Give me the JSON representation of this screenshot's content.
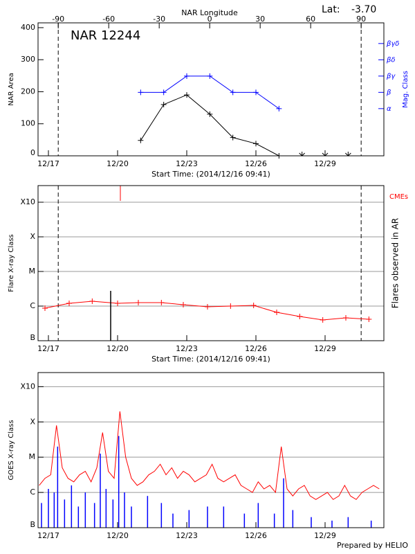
{
  "credit": "Prepared by HELIO",
  "chart_data": [
    {
      "type": "line",
      "title": "NAR 12244",
      "lat_label": "Lat:",
      "lat_value": "-3.70",
      "x_label": "Start Time: (2014/12/16 09:41)",
      "y_label": "NAR Area",
      "y2_label": "Mag. Class",
      "x2_label": "NAR Longitude",
      "xlim": [
        0.55,
        15.55
      ],
      "xticks": [
        {
          "value": 1,
          "label": "12/17"
        },
        {
          "value": 4,
          "label": "12/20"
        },
        {
          "value": 7,
          "label": "12/23"
        },
        {
          "value": 10,
          "label": "12/26"
        },
        {
          "value": 13,
          "label": "12/29"
        }
      ],
      "ylim": [
        0,
        415
      ],
      "yticks": [
        0,
        100,
        200,
        300,
        400
      ],
      "y2lim": [
        -0.9,
        7.27
      ],
      "y2ticks": [
        {
          "value": 2,
          "label": "α"
        },
        {
          "value": 3,
          "label": "β"
        },
        {
          "value": 4,
          "label": "βγ"
        },
        {
          "value": 5,
          "label": "βδ"
        },
        {
          "value": 6,
          "label": "βγδ"
        }
      ],
      "x2lim": [
        -102,
        103.5
      ],
      "x2ticks": [
        -90,
        -60,
        -30,
        0,
        30,
        60,
        90
      ],
      "limb_lines": [
        -90,
        90
      ],
      "series": [
        {
          "color": "#000000",
          "style": "line",
          "marker": "+",
          "x": [
            5,
            6,
            7,
            8,
            9,
            10,
            11
          ],
          "values": [
            48,
            160,
            190,
            130,
            57,
            38,
            0
          ]
        },
        {
          "color": "#0000ff",
          "style": "line",
          "marker": "+",
          "axis": "y2",
          "x": [
            5,
            6,
            7,
            8,
            9,
            10,
            11
          ],
          "values": [
            3,
            3,
            4,
            4,
            3,
            3,
            2
          ]
        },
        {
          "color": "#000000",
          "style": "arrow",
          "x": [
            12,
            13,
            14
          ],
          "values": [
            0,
            0,
            0
          ]
        }
      ]
    },
    {
      "type": "line",
      "x_label": "Start Time: (2014/12/16 09:41)",
      "y_label": "Flare X-ray Class",
      "y2_label": "Flares observed in AR",
      "xlim": [
        0.55,
        15.55
      ],
      "xticks": [
        {
          "value": 1,
          "label": "12/17"
        },
        {
          "value": 4,
          "label": "12/20"
        },
        {
          "value": 7,
          "label": "12/23"
        },
        {
          "value": 10,
          "label": "12/26"
        },
        {
          "value": 13,
          "label": "12/29"
        }
      ],
      "ylim": [
        -7,
        -2.52
      ],
      "yticks": [
        {
          "value": -7,
          "label": "B"
        },
        {
          "value": -6,
          "label": "C"
        },
        {
          "value": -5,
          "label": "M"
        },
        {
          "value": -4,
          "label": "X"
        },
        {
          "value": -3,
          "label": "X10"
        }
      ],
      "grid": true,
      "series": [
        {
          "color": "#ff0000",
          "style": "line",
          "marker": "+",
          "x": [
            0.85,
            1.9,
            2.9,
            4.0,
            4.9,
            5.9,
            6.85,
            7.9,
            8.9,
            9.9,
            10.9,
            11.9,
            12.9,
            13.9,
            14.9
          ],
          "values": [
            -6.06,
            -5.92,
            -5.86,
            -5.92,
            -5.9,
            -5.9,
            -5.96,
            -6.02,
            -6.0,
            -5.98,
            -6.18,
            -6.3,
            -6.4,
            -6.34,
            -6.38
          ]
        },
        {
          "color": "#000000",
          "style": "bar",
          "x": [
            3.7
          ],
          "values": [
            -5.56
          ]
        }
      ],
      "cmes": {
        "label": "CMEs",
        "color": "#ff0000",
        "x": [
          4.12
        ]
      }
    },
    {
      "type": "line",
      "y_label": "GOES X-ray Class",
      "xlim": [
        0.55,
        15.55
      ],
      "xticks": [
        {
          "value": 1,
          "label": "12/17"
        },
        {
          "value": 4,
          "label": "12/20"
        },
        {
          "value": 7,
          "label": "12/23"
        },
        {
          "value": 10,
          "label": "12/26"
        },
        {
          "value": 13,
          "label": "12/29"
        }
      ],
      "ylim": [
        -7,
        -2.6
      ],
      "yticks": [
        {
          "value": -7,
          "label": "B"
        },
        {
          "value": -6,
          "label": "C"
        },
        {
          "value": -5,
          "label": "M"
        },
        {
          "value": -4,
          "label": "X"
        },
        {
          "value": -3,
          "label": "X10"
        }
      ],
      "grid": true,
      "series": [
        {
          "color": "#0000ff",
          "style": "bar",
          "x": [
            0.7,
            1.0,
            1.25,
            1.4,
            1.7,
            2.0,
            2.3,
            2.6,
            3.0,
            3.25,
            3.5,
            3.8,
            4.05,
            4.3,
            4.6,
            5.3,
            5.9,
            6.4,
            7.1,
            7.9,
            8.6,
            9.5,
            10.1,
            10.8,
            11.2,
            11.6,
            12.4,
            13.3,
            14.0,
            15.0
          ],
          "values": [
            -6.3,
            -5.9,
            -6.0,
            -4.7,
            -6.2,
            -5.8,
            -6.4,
            -6.0,
            -6.3,
            -4.9,
            -5.9,
            -6.2,
            -4.4,
            -6.0,
            -6.4,
            -6.1,
            -6.3,
            -6.6,
            -6.5,
            -6.4,
            -6.4,
            -6.6,
            -6.3,
            -6.6,
            -5.6,
            -6.5,
            -6.7,
            -6.8,
            -6.7,
            -6.8
          ]
        },
        {
          "color": "#ff0000",
          "style": "line",
          "x": [
            0.6,
            0.85,
            1.1,
            1.35,
            1.6,
            1.85,
            2.1,
            2.35,
            2.6,
            2.85,
            3.1,
            3.35,
            3.6,
            3.85,
            4.1,
            4.35,
            4.6,
            4.85,
            5.1,
            5.35,
            5.6,
            5.85,
            6.1,
            6.35,
            6.6,
            6.85,
            7.1,
            7.35,
            7.6,
            7.85,
            8.1,
            8.35,
            8.6,
            8.85,
            9.1,
            9.35,
            9.6,
            9.85,
            10.1,
            10.35,
            10.6,
            10.85,
            11.1,
            11.35,
            11.6,
            11.85,
            12.1,
            12.35,
            12.6,
            12.85,
            13.1,
            13.35,
            13.6,
            13.85,
            14.1,
            14.35,
            14.6,
            14.85,
            15.1,
            15.35
          ],
          "values": [
            -5.8,
            -5.6,
            -5.5,
            -4.1,
            -5.3,
            -5.6,
            -5.7,
            -5.5,
            -5.4,
            -5.7,
            -5.3,
            -4.3,
            -5.4,
            -5.6,
            -3.7,
            -5.0,
            -5.6,
            -5.8,
            -5.7,
            -5.5,
            -5.4,
            -5.2,
            -5.5,
            -5.3,
            -5.6,
            -5.4,
            -5.5,
            -5.7,
            -5.6,
            -5.5,
            -5.2,
            -5.6,
            -5.7,
            -5.6,
            -5.5,
            -5.8,
            -5.9,
            -6.0,
            -5.7,
            -5.9,
            -5.8,
            -6.0,
            -4.7,
            -5.9,
            -6.1,
            -5.9,
            -5.8,
            -6.1,
            -6.2,
            -6.1,
            -6.0,
            -6.2,
            -6.1,
            -5.8,
            -6.1,
            -6.2,
            -6.0,
            -5.9,
            -5.8,
            -5.9
          ]
        }
      ]
    }
  ]
}
